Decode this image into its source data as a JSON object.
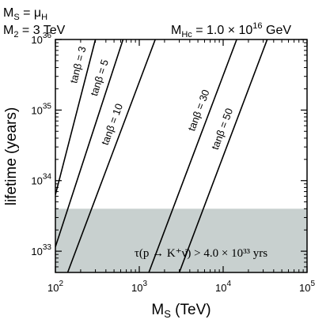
{
  "header": {
    "line1": {
      "main": "M",
      "sub": "S",
      "rest": " = μ",
      "sub2": "H"
    },
    "line2": {
      "main": "M",
      "sub": "2",
      "rest": " = 3 TeV"
    },
    "line3": {
      "main": "M",
      "sub": "Hc",
      "rest": " = 1.0 × 10",
      "sup": "16",
      "tail": " GeV"
    }
  },
  "chart_data": {
    "type": "line",
    "title": "",
    "xlabel": {
      "main": "M",
      "sub": "S",
      "rest": " (TeV)"
    },
    "ylabel": "lifetime (years)",
    "xscale": "log",
    "yscale": "log",
    "xlim": [
      100,
      100000
    ],
    "ylim": [
      5e+32,
      1e+36
    ],
    "xticks": [
      {
        "value": 100,
        "base": "10",
        "exp": "2"
      },
      {
        "value": 1000,
        "base": "10",
        "exp": "3"
      },
      {
        "value": 10000,
        "base": "10",
        "exp": "4"
      },
      {
        "value": 100000,
        "base": "10",
        "exp": "5"
      }
    ],
    "yticks": [
      {
        "value": 1e+33,
        "base": "10",
        "exp": "33"
      },
      {
        "value": 1e+34,
        "base": "10",
        "exp": "34"
      },
      {
        "value": 1e+35,
        "base": "10",
        "exp": "35"
      },
      {
        "value": 1e+36,
        "base": "10",
        "exp": "36"
      }
    ],
    "series": [
      {
        "name": "tanβ = 3",
        "x": [
          100,
          300
        ],
        "y": [
          6.3e+33,
          1e+36
        ]
      },
      {
        "name": "tanβ = 5",
        "x": [
          100,
          640
        ],
        "y": [
          1.15e+33,
          1e+36
        ]
      },
      {
        "name": "tanβ = 10",
        "x": [
          140,
          1550
        ],
        "y": [
          5e+32,
          1e+36
        ]
      },
      {
        "name": "tanβ = 30",
        "x": [
          1300,
          14500
        ],
        "y": [
          5e+32,
          1e+36
        ]
      },
      {
        "name": "tanβ = 50",
        "x": [
          3000,
          33500
        ],
        "y": [
          5e+32,
          1e+36
        ]
      }
    ],
    "excluded_region": {
      "y_upper": 4e+33,
      "label": "τ(p → K⁺ν̄) > 4.0 × 10³³ yrs",
      "color": "#c8d0cf"
    },
    "grid": false,
    "legend": "none"
  }
}
